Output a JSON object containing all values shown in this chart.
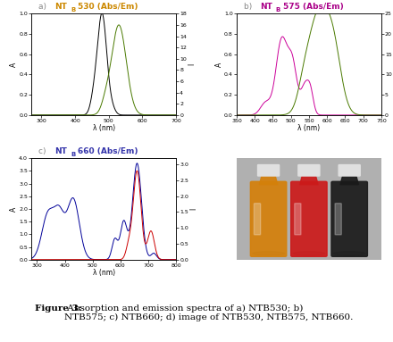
{
  "panel_a": {
    "xlim": [
      270,
      700
    ],
    "ylim_left": [
      0,
      1.0
    ],
    "ylim_right": [
      0,
      18
    ],
    "xlabel": "λ (nm)",
    "ylabel_left": "A",
    "ylabel_right": "I",
    "abs_color": "#000000",
    "em_color": "#4a7a00",
    "title_a": "a)",
    "title_nt": "NT",
    "title_b_sub": "B",
    "title_rest": "530 (Abs/Em)",
    "title_color_a": "#888888",
    "title_color_main": "#cc8800"
  },
  "panel_b": {
    "xlim": [
      350,
      750
    ],
    "ylim_left": [
      0,
      1.0
    ],
    "ylim_right": [
      0,
      25
    ],
    "xlabel": "λ (nm)",
    "ylabel_left": "A",
    "ylabel_right": "I",
    "abs_color": "#cc0099",
    "em_color": "#4a7a00",
    "title_a": "b)",
    "title_nt": "NT",
    "title_b_sub": "B",
    "title_rest": "575 (Abs/Em)",
    "title_color_a": "#888888",
    "title_color_main": "#aa0088"
  },
  "panel_c": {
    "xlim": [
      280,
      800
    ],
    "ylim_left": [
      0,
      4.0
    ],
    "ylim_right": [
      0,
      3.2
    ],
    "xlabel": "λ (nm)",
    "ylabel_left": "A",
    "ylabel_right": "I",
    "abs_color": "#000099",
    "em_color": "#cc0000",
    "title_a": "c)",
    "title_nt": "NT",
    "title_b_sub": "B",
    "title_rest": "660 (Abs/Em)",
    "title_color_a": "#888888",
    "title_color_main": "#3333aa"
  },
  "caption_bold": "Figure 3:",
  "caption_rest": " Absorption and emission spectra of a) NTB530; b)\nNTB575; c) NTB660; d) image of NTB530, NTB575, NTB660.",
  "bg_color": "#ffffff",
  "tick_fontsize": 4.5,
  "label_fontsize": 5.5,
  "title_fontsize": 6.5,
  "caption_fontsize": 7.5
}
